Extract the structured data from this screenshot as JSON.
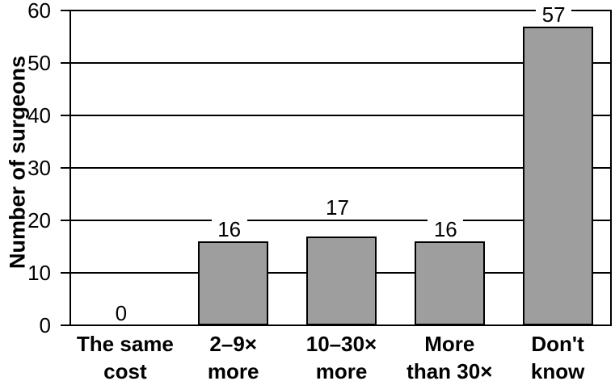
{
  "chart_data": {
    "type": "bar",
    "title": "",
    "xlabel": "",
    "ylabel": "Number of surgeons",
    "categories": [
      "The same cost",
      "2–9× more",
      "10–30× more",
      "More than 30×",
      "Don't know"
    ],
    "category_lines": [
      [
        "The same",
        "cost"
      ],
      [
        "2–9×",
        "more"
      ],
      [
        "10–30×",
        "more"
      ],
      [
        "More",
        "than 30×"
      ],
      [
        "Don't",
        "know"
      ]
    ],
    "values": [
      0,
      16,
      17,
      16,
      57
    ],
    "value_labels": [
      "0",
      "16",
      "17",
      "16",
      "57"
    ],
    "ylim": [
      0,
      60
    ],
    "yticks": [
      0,
      10,
      20,
      30,
      40,
      50,
      60
    ],
    "grid": "horizontal",
    "legend": "none",
    "bar_color": "#9e9e9e",
    "bar_border_color": "#000000",
    "axis_color": "#000000",
    "background_color": "#ffffff"
  }
}
